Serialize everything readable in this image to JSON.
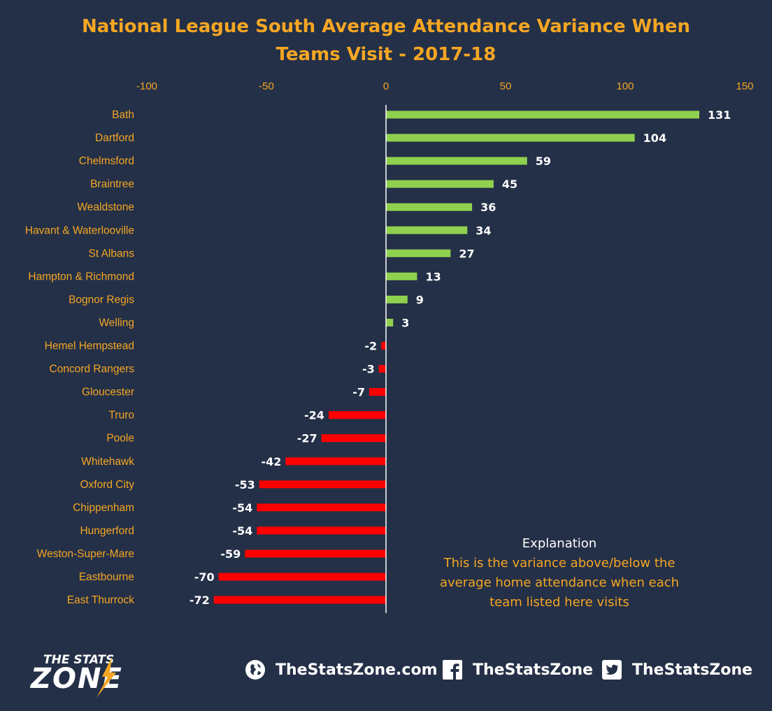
{
  "title": {
    "line1": "National League South Average Attendance Variance When",
    "line2": "Teams Visit - 2017-18"
  },
  "colors": {
    "background": "#243047",
    "label": "#f5a623",
    "positive": "#8fd14f",
    "negative": "#ff0000",
    "value_label": "#ffffff"
  },
  "chart_data": {
    "type": "bar",
    "orientation": "horizontal",
    "title": "National League South Average Attendance Variance When Teams Visit - 2017-18",
    "xlim": [
      -100,
      150
    ],
    "x_ticks": [
      -100,
      -50,
      0,
      50,
      100,
      150
    ],
    "x_axis_position": "top",
    "grid": false,
    "categories": [
      "Bath",
      "Dartford",
      "Chelmsford",
      "Braintree",
      "Wealdstone",
      "Havant & Waterlooville",
      "St Albans",
      "Hampton & Richmond",
      "Bognor Regis",
      "Welling",
      "Hemel Hempstead",
      "Concord Rangers",
      "Gloucester",
      "Truro",
      "Poole",
      "Whitehawk",
      "Oxford City",
      "Chippenham",
      "Hungerford",
      "Weston-Super-Mare",
      "Eastbourne",
      "East Thurrock"
    ],
    "values": [
      131,
      104,
      59,
      45,
      36,
      34,
      27,
      13,
      9,
      3,
      -2,
      -3,
      -7,
      -24,
      -27,
      -42,
      -53,
      -54,
      -54,
      -59,
      -70,
      -72
    ]
  },
  "explanation": {
    "heading": "Explanation",
    "line1": "This is the variance above/below the",
    "line2": "average home attendance when each",
    "line3": "team listed here visits"
  },
  "footer": {
    "logo_top": "THE STATS",
    "logo_bottom": "ZONE",
    "website": "TheStatsZone.com",
    "facebook": "TheStatsZone",
    "twitter": "TheStatsZone",
    "icons": [
      "globe-icon",
      "facebook-icon",
      "twitter-icon"
    ]
  }
}
